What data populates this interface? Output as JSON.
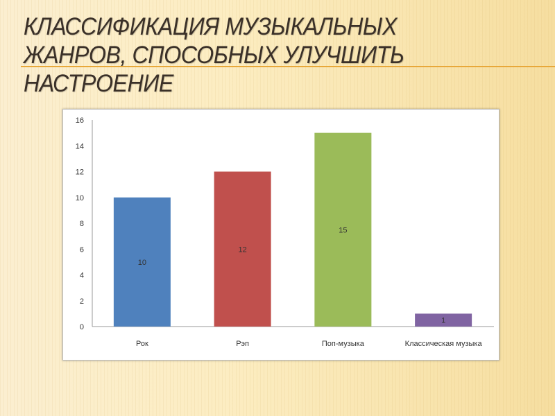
{
  "slide": {
    "title": "Классификация музыкальных жанров, способных улучшить настроение"
  },
  "chart_data": {
    "type": "bar",
    "title": "",
    "xlabel": "",
    "ylabel": "",
    "categories": [
      "Рок",
      "Рэп",
      "Поп-музыка",
      "Классическая музыка"
    ],
    "values": [
      10,
      12,
      15,
      1
    ],
    "colors": [
      "#4f81bd",
      "#c0504d",
      "#9bbb59",
      "#8064a2"
    ],
    "data_labels": [
      "10",
      "12",
      "15",
      "1"
    ],
    "ylim": [
      0,
      16
    ],
    "yticks": [
      0,
      2,
      4,
      6,
      8,
      10,
      12,
      14,
      16
    ],
    "grid": false,
    "legend": "none"
  }
}
